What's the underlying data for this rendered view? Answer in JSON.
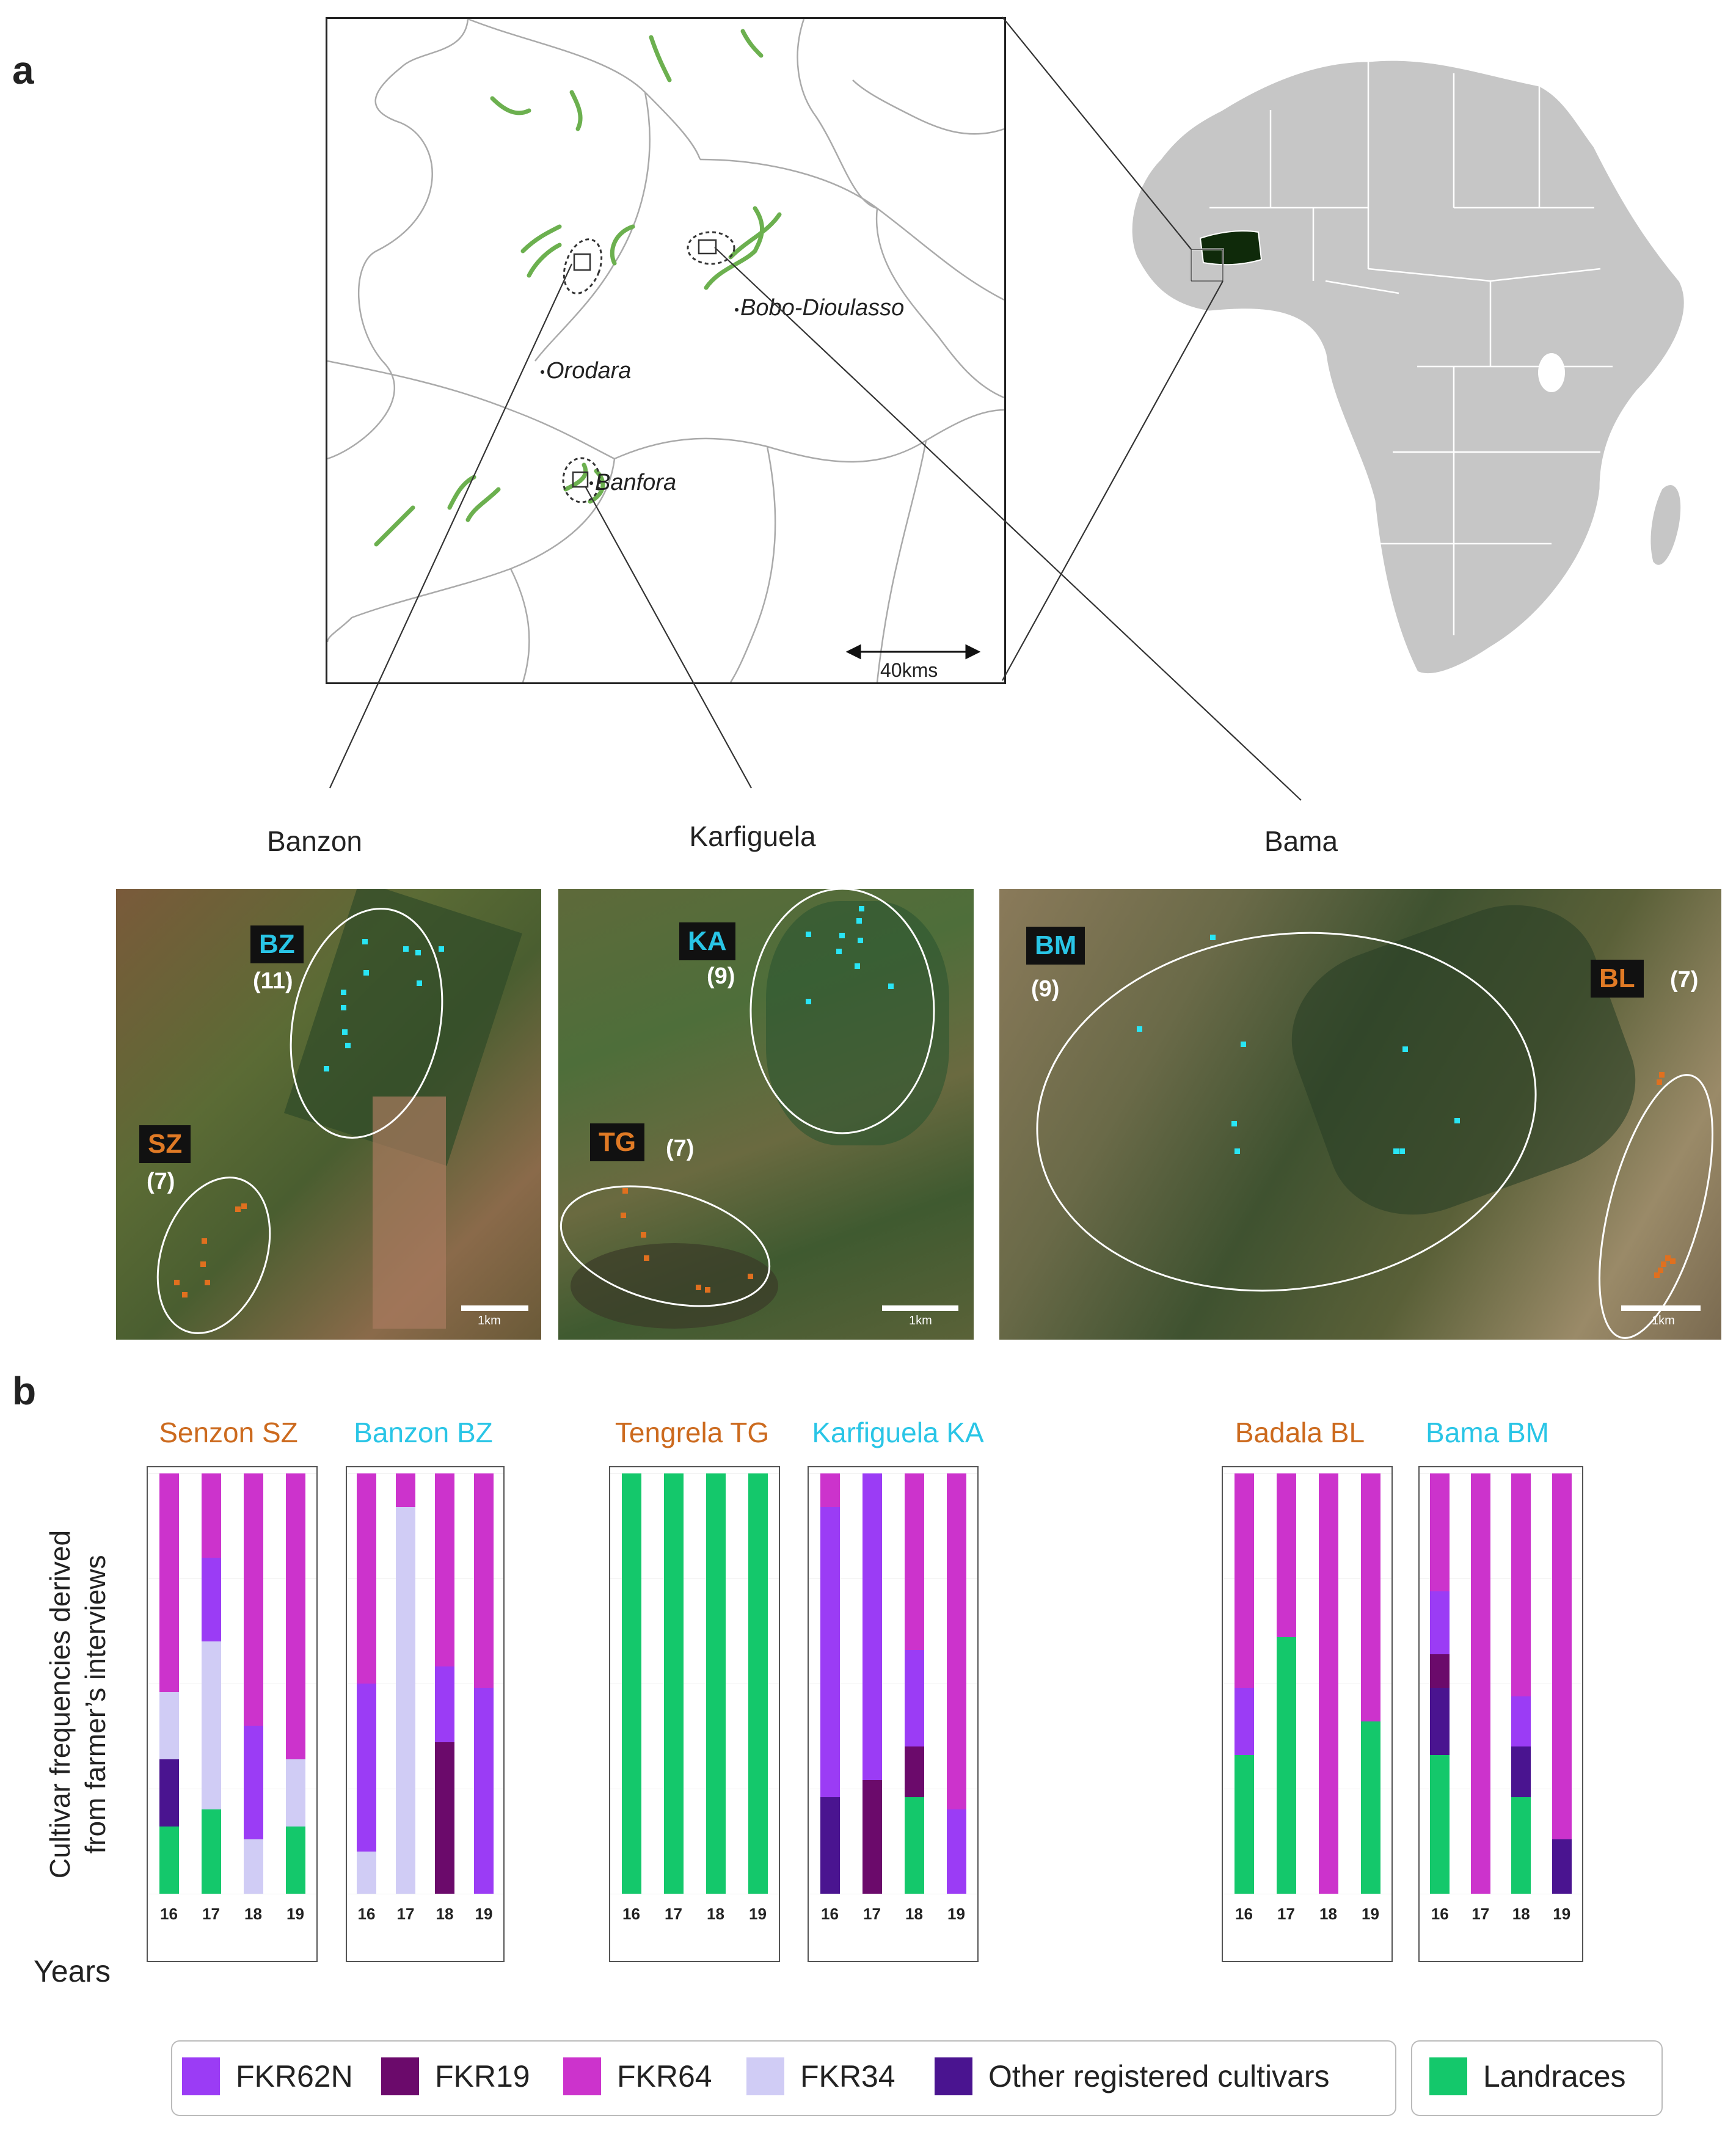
{
  "panel_a": {
    "letter": "a",
    "map": {
      "cities": [
        {
          "id": "bobo",
          "name": "Bobo-Dioulasso"
        },
        {
          "id": "orodara",
          "name": "Orodara"
        },
        {
          "id": "banfora",
          "name": "Banfora"
        }
      ],
      "scale_label": "40kms"
    },
    "regions": [
      {
        "id": "banzon",
        "name": "Banzon"
      },
      {
        "id": "karfiguela",
        "name": "Karfiguela"
      },
      {
        "id": "bama",
        "name": "Bama"
      }
    ],
    "satellite": {
      "banzon": {
        "sites": [
          {
            "code": "BZ",
            "count": "(11)",
            "color": "#29c5e6"
          },
          {
            "code": "SZ",
            "count": "(7)",
            "color": "#e07a25"
          }
        ],
        "scale": "1km"
      },
      "karfiguela": {
        "sites": [
          {
            "code": "KA",
            "count": "(9)",
            "color": "#29c5e6"
          },
          {
            "code": "TG",
            "count": "(7)",
            "color": "#e07a25"
          }
        ],
        "scale": "1km"
      },
      "bama": {
        "sites": [
          {
            "code": "BM",
            "count": "(9)",
            "color": "#29c5e6"
          },
          {
            "code": "BL",
            "count": "(7)",
            "color": "#e07a25"
          }
        ],
        "scale": "1km"
      }
    }
  },
  "panel_b": {
    "letter": "b",
    "y_label_line1": "Cultivar frequencies derived",
    "y_label_line2": "from farmer’s interviews",
    "x_label": "Years",
    "colors": {
      "FKR62N": "#9b3cf5",
      "FKR19": "#6b0a6b",
      "FKR64": "#cc33cc",
      "FKR34": "#d0ccf5",
      "Other": "#4a1490",
      "Landraces": "#14c86b",
      "blue_site": "#29c5e6",
      "orange_site": "#cc6a1e"
    }
  },
  "chart_data": {
    "type": "bar",
    "stacked": true,
    "categories": [
      "16",
      "17",
      "18",
      "19"
    ],
    "legend": [
      "FKR62N",
      "FKR19",
      "FKR64",
      "FKR34",
      "Other registered cultivars",
      "Landraces"
    ],
    "ylim": [
      0,
      1
    ],
    "facets": [
      {
        "title": "Senzon SZ",
        "title_color": "orange",
        "bars": [
          {
            "year": "16",
            "Landraces": 0.16,
            "Other registered cultivars": 0.16,
            "FKR34": 0.16,
            "FKR64": 0.52
          },
          {
            "year": "17",
            "Landraces": 0.2,
            "FKR34": 0.4,
            "FKR62N": 0.2,
            "FKR64": 0.2
          },
          {
            "year": "18",
            "FKR34": 0.13,
            "FKR62N": 0.27,
            "FKR64": 0.6
          },
          {
            "year": "19",
            "Landraces": 0.16,
            "FKR34": 0.16,
            "FKR64": 0.68
          }
        ]
      },
      {
        "title": "Banzon BZ",
        "title_color": "blue",
        "bars": [
          {
            "year": "16",
            "FKR34": 0.1,
            "FKR62N": 0.4,
            "FKR64": 0.5
          },
          {
            "year": "17",
            "FKR34": 0.92,
            "FKR64": 0.08
          },
          {
            "year": "18",
            "FKR19": 0.36,
            "FKR62N": 0.18,
            "FKR64": 0.46
          },
          {
            "year": "19",
            "FKR62N": 0.49,
            "FKR64": 0.51
          }
        ]
      },
      {
        "title": "Tengrela TG",
        "title_color": "orange",
        "bars": [
          {
            "year": "16",
            "Landraces": 1.0
          },
          {
            "year": "17",
            "Landraces": 1.0
          },
          {
            "year": "18",
            "Landraces": 1.0
          },
          {
            "year": "19",
            "Landraces": 1.0
          }
        ]
      },
      {
        "title": "Karfiguela KA",
        "title_color": "blue",
        "bars": [
          {
            "year": "16",
            "Other registered cultivars": 0.23,
            "FKR62N": 0.69,
            "FKR64": 0.08
          },
          {
            "year": "17",
            "FKR19": 0.27,
            "FKR62N": 0.73
          },
          {
            "year": "18",
            "Landraces": 0.23,
            "FKR19": 0.12,
            "FKR62N": 0.23,
            "FKR64": 0.42
          },
          {
            "year": "19",
            "FKR62N": 0.2,
            "FKR64": 0.8
          }
        ]
      },
      {
        "title": "Badala BL",
        "title_color": "orange",
        "bars": [
          {
            "year": "16",
            "Landraces": 0.33,
            "FKR62N": 0.16,
            "FKR64": 0.51
          },
          {
            "year": "17",
            "Landraces": 0.61,
            "FKR64": 0.39
          },
          {
            "year": "18",
            "FKR64": 1.0
          },
          {
            "year": "19",
            "Landraces": 0.41,
            "FKR64": 0.59
          }
        ]
      },
      {
        "title": "Bama BM",
        "title_color": "blue",
        "bars": [
          {
            "year": "16",
            "Landraces": 0.33,
            "Other registered cultivars": 0.16,
            "FKR19": 0.08,
            "FKR62N": 0.15,
            "FKR64": 0.28
          },
          {
            "year": "17",
            "FKR64": 1.0
          },
          {
            "year": "18",
            "Landraces": 0.23,
            "Other registered cultivars": 0.12,
            "FKR62N": 0.12,
            "FKR64": 0.53
          },
          {
            "year": "19",
            "Other registered cultivars": 0.13,
            "FKR64": 0.87
          }
        ]
      }
    ]
  }
}
